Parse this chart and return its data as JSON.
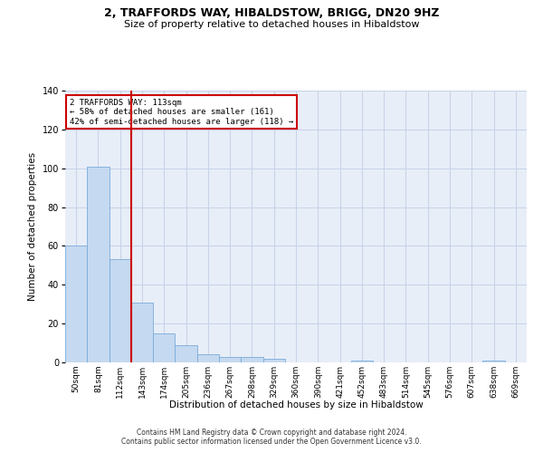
{
  "title": "2, TRAFFORDS WAY, HIBALDSTOW, BRIGG, DN20 9HZ",
  "subtitle": "Size of property relative to detached houses in Hibaldstow",
  "xlabel": "Distribution of detached houses by size in Hibaldstow",
  "ylabel": "Number of detached properties",
  "bar_color": "#c5d9f0",
  "bar_edge_color": "#7aabdb",
  "grid_color": "#c8d4e8",
  "background_color": "#e8eef8",
  "categories": [
    "50sqm",
    "81sqm",
    "112sqm",
    "143sqm",
    "174sqm",
    "205sqm",
    "236sqm",
    "267sqm",
    "298sqm",
    "329sqm",
    "360sqm",
    "390sqm",
    "421sqm",
    "452sqm",
    "483sqm",
    "514sqm",
    "545sqm",
    "576sqm",
    "607sqm",
    "638sqm",
    "669sqm"
  ],
  "values": [
    60,
    101,
    53,
    31,
    15,
    9,
    4,
    3,
    3,
    2,
    0,
    0,
    0,
    1,
    0,
    0,
    0,
    0,
    0,
    1,
    0
  ],
  "ylim": [
    0,
    140
  ],
  "yticks": [
    0,
    20,
    40,
    60,
    80,
    100,
    120,
    140
  ],
  "property_label": "2 TRAFFORDS WAY: 113sqm",
  "pct_smaller": 58,
  "n_smaller": 161,
  "pct_larger": 42,
  "n_larger": 118,
  "annotation_box_color": "#ffffff",
  "annotation_border_color": "#cc0000",
  "footer_line1": "Contains HM Land Registry data © Crown copyright and database right 2024.",
  "footer_line2": "Contains public sector information licensed under the Open Government Licence v3.0."
}
